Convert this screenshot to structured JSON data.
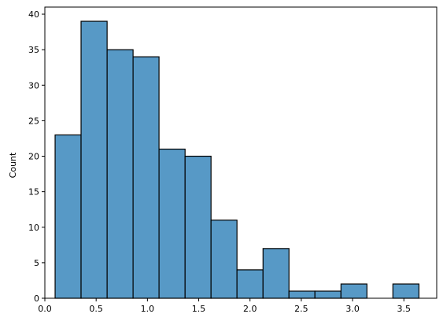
{
  "chart_data": {
    "type": "bar",
    "subtype": "histogram",
    "title": "",
    "xlabel": "",
    "ylabel": "Count",
    "bins": [
      {
        "x0": 0.1,
        "x1": 0.353,
        "count": 23
      },
      {
        "x0": 0.353,
        "x1": 0.607,
        "count": 39
      },
      {
        "x0": 0.607,
        "x1": 0.86,
        "count": 35
      },
      {
        "x0": 0.86,
        "x1": 1.113,
        "count": 34
      },
      {
        "x0": 1.113,
        "x1": 1.367,
        "count": 21
      },
      {
        "x0": 1.367,
        "x1": 1.62,
        "count": 20
      },
      {
        "x0": 1.62,
        "x1": 1.873,
        "count": 11
      },
      {
        "x0": 1.873,
        "x1": 2.127,
        "count": 4
      },
      {
        "x0": 2.127,
        "x1": 2.38,
        "count": 7
      },
      {
        "x0": 2.38,
        "x1": 2.633,
        "count": 1
      },
      {
        "x0": 2.633,
        "x1": 2.887,
        "count": 1
      },
      {
        "x0": 2.887,
        "x1": 3.14,
        "count": 2
      },
      {
        "x0": 3.14,
        "x1": 3.393,
        "count": 0
      },
      {
        "x0": 3.393,
        "x1": 3.647,
        "count": 2
      }
    ],
    "xlim": [
      0.0,
      3.82
    ],
    "ylim": [
      0,
      41
    ],
    "xticks": [
      0.0,
      0.5,
      1.0,
      1.5,
      2.0,
      2.5,
      3.0,
      3.5
    ],
    "xtick_labels": [
      "0.0",
      "0.5",
      "1.0",
      "1.5",
      "2.0",
      "2.5",
      "3.0",
      "3.5"
    ],
    "yticks": [
      0,
      5,
      10,
      15,
      20,
      25,
      30,
      35,
      40
    ],
    "ytick_labels": [
      "0",
      "5",
      "10",
      "15",
      "20",
      "25",
      "30",
      "35",
      "40"
    ],
    "grid": false,
    "bar_color": "#5799c6",
    "edge_color": "#000000"
  }
}
